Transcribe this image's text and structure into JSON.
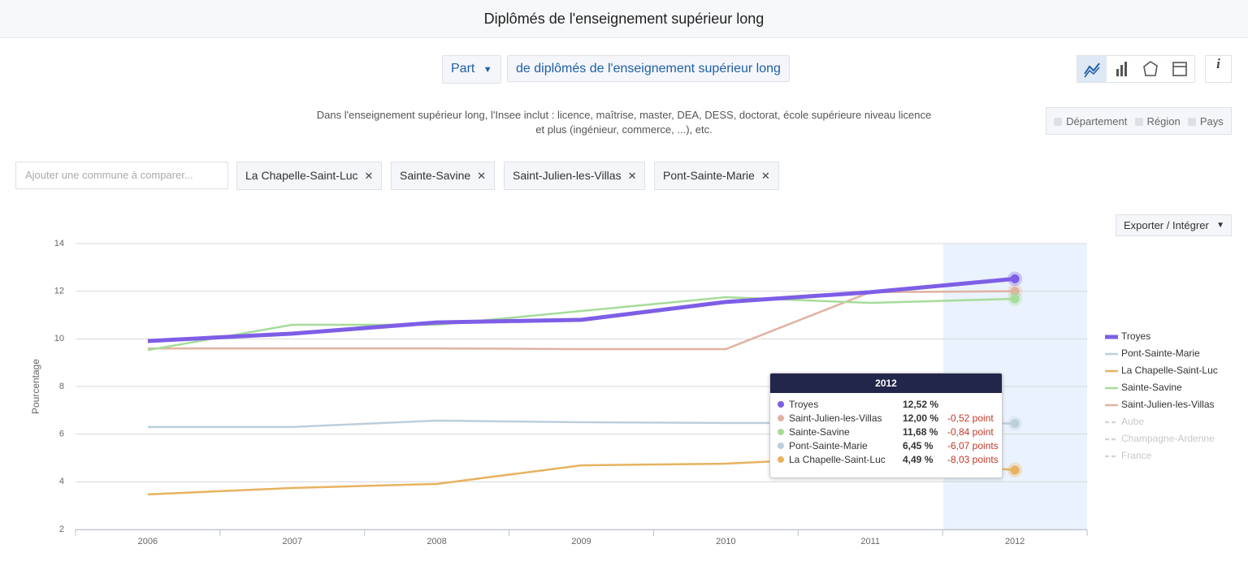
{
  "header": {
    "title": "Diplômés de l'enseignement supérieur long"
  },
  "controls": {
    "measure": "Part",
    "indicator": "de diplômés de l'enseignement supérieur long"
  },
  "description": "Dans l'enseignement supérieur long, l'Insee inclut : licence, maîtrise, master, DEA, DESS, doctorat, école supérieure niveau licence et plus (ingénieur, commerce, ...), etc.",
  "levels": [
    "Département",
    "Région",
    "Pays"
  ],
  "search": {
    "placeholder": "Ajouter une commune à comparer..."
  },
  "tags": [
    "La Chapelle-Saint-Luc",
    "Sainte-Savine",
    "Saint-Julien-les-Villas",
    "Pont-Sainte-Marie"
  ],
  "export": "Exporter / Intégrer",
  "chart_data": {
    "type": "line",
    "ylabel": "Pourcentage",
    "categories": [
      "2006",
      "2007",
      "2008",
      "2009",
      "2010",
      "2011",
      "2012"
    ],
    "ylim": [
      2,
      14
    ],
    "yticks": [
      2,
      4,
      6,
      8,
      10,
      12,
      14
    ],
    "grid": true,
    "series": [
      {
        "name": "Troyes",
        "color": "#7e5ee6",
        "values": [
          9.91,
          10.22,
          10.69,
          10.8,
          11.55,
          11.96,
          12.52
        ]
      },
      {
        "name": "Pont-Sainte-Marie",
        "color": "#bccfdb",
        "values": [
          6.3,
          6.3,
          6.57,
          6.5,
          6.47,
          6.47,
          6.45
        ]
      },
      {
        "name": "La Chapelle-Saint-Luc",
        "color": "#e8b25f",
        "values": [
          3.47,
          3.74,
          3.91,
          4.69,
          4.76,
          5.05,
          4.49
        ]
      },
      {
        "name": "Sainte-Savine",
        "color": "#a6dc9a",
        "values": [
          9.53,
          10.59,
          10.59,
          11.17,
          11.75,
          11.51,
          11.68
        ]
      },
      {
        "name": "Saint-Julien-les-Villas",
        "color": "#e1b2a1",
        "values": [
          9.6,
          9.6,
          9.6,
          9.57,
          9.57,
          11.96,
          12.0
        ]
      }
    ],
    "inactive_legend": [
      "Aube",
      "Champagne-Ardenne",
      "France"
    ],
    "tooltip": {
      "title": "2012",
      "rows": [
        {
          "name": "Troyes",
          "color": "#7e5ee6",
          "value": "12,52 %"
        },
        {
          "name": "Saint-Julien-les-Villas",
          "color": "#e1b2a1",
          "value": "12,00 %",
          "diff": "-0,52 point"
        },
        {
          "name": "Sainte-Savine",
          "color": "#a6dc9a",
          "value": "11,68 %",
          "diff": "-0,84 point"
        },
        {
          "name": "Pont-Sainte-Marie",
          "color": "#bccfdb",
          "value": "6,45 %",
          "diff": "-6,07 points"
        },
        {
          "name": "La Chapelle-Saint-Luc",
          "color": "#e8b25f",
          "value": "4,49 %",
          "diff": "-8,03 points"
        }
      ]
    }
  }
}
